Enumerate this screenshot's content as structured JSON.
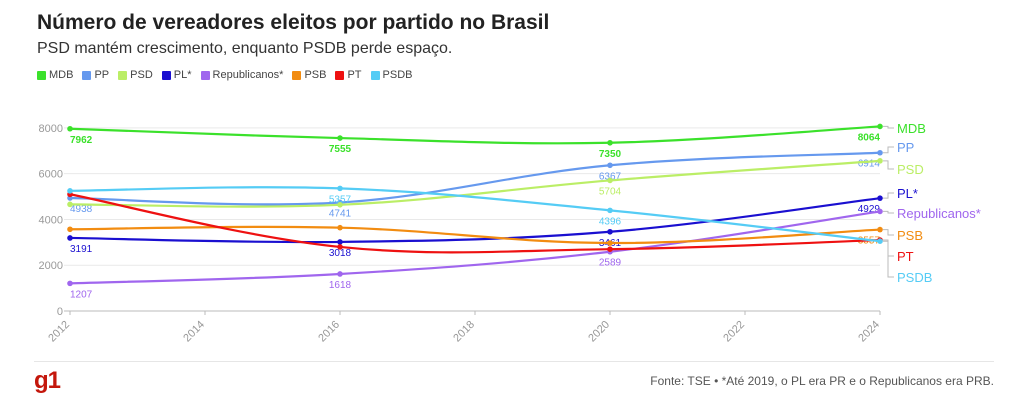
{
  "title": "Número de vereadores eleitos por partido no Brasil",
  "subtitle": "PSD mantém crescimento, enquanto PSDB perde espaço.",
  "footer": "Fonte: TSE • *Até 2019, o PL era PR e o Republicanos era PRB.",
  "logo_text": "g1",
  "chart_data": {
    "type": "line",
    "x": [
      2012,
      2016,
      2020,
      2024
    ],
    "xlim": [
      2012,
      2024
    ],
    "xticks": [
      2012,
      2014,
      2016,
      2018,
      2020,
      2022,
      2024
    ],
    "ylim": [
      0,
      9000
    ],
    "yticks": [
      0,
      2000,
      4000,
      6000,
      8000
    ],
    "grid": true,
    "legend_position": "top-left",
    "series": [
      {
        "name": "MDB",
        "color": "#3be12b",
        "values": [
          7962,
          7555,
          7350,
          8064
        ],
        "labels": [
          "7962",
          "7555",
          "7350",
          "8064"
        ]
      },
      {
        "name": "PP",
        "color": "#6699ee",
        "values": [
          4938,
          4741,
          6367,
          6914
        ],
        "labels": [
          "4938",
          "4741",
          "6367",
          "6914"
        ]
      },
      {
        "name": "PSD",
        "color": "#bbee66",
        "values": [
          4660,
          4640,
          5704,
          6560
        ],
        "labels": [
          "",
          "",
          "5704",
          ""
        ]
      },
      {
        "name": "PL*",
        "color": "#1a0fd0",
        "values": [
          3191,
          3018,
          3461,
          4929
        ],
        "labels": [
          "3191",
          "3018",
          "3461",
          "4929"
        ]
      },
      {
        "name": "Republicanos*",
        "color": "#a066ee",
        "values": [
          1207,
          1618,
          2589,
          4350
        ],
        "labels": [
          "1207",
          "1618",
          "2589",
          ""
        ]
      },
      {
        "name": "PSB",
        "color": "#f28c11",
        "values": [
          3570,
          3640,
          2970,
          3557
        ],
        "labels": [
          "",
          "",
          "",
          "3557"
        ]
      },
      {
        "name": "PT",
        "color": "#ee1111",
        "values": [
          5100,
          2800,
          2700,
          3100
        ],
        "labels": [
          "",
          "",
          "",
          ""
        ]
      },
      {
        "name": "PSDB",
        "color": "#55ccf5",
        "values": [
          5250,
          5357,
          4396,
          3050
        ],
        "labels": [
          "",
          "5357",
          "4396",
          ""
        ]
      }
    ]
  }
}
